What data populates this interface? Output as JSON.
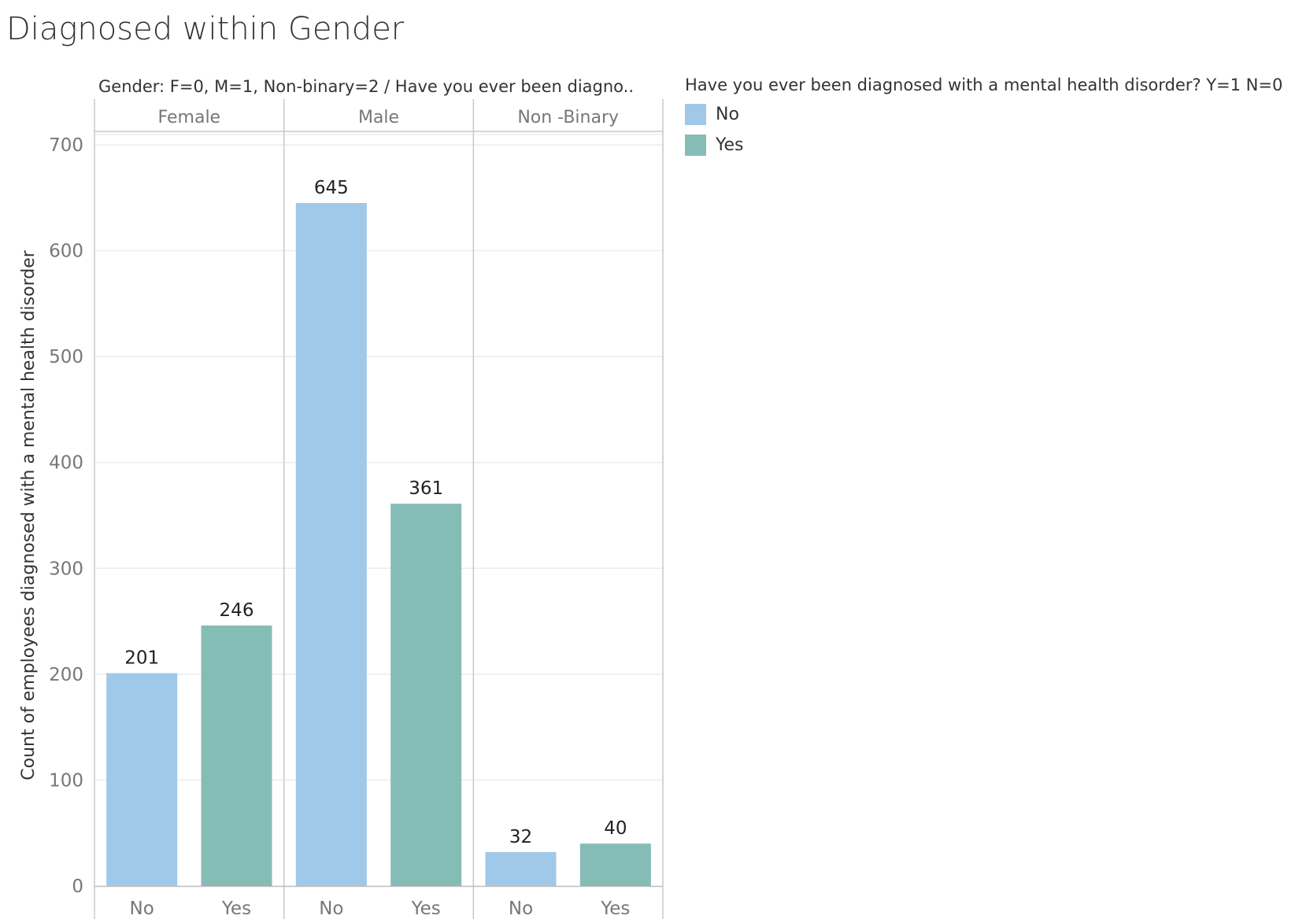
{
  "chart_data": {
    "type": "bar",
    "title": "Diagnosed within Gender",
    "column_header": "Gender: F=0, M=1, Non-binary=2  /  Have you ever been diagno..",
    "ylabel": "Count of employees diagnosed with a mental health disorder",
    "ylim": [
      0,
      700
    ],
    "yticks": [
      0,
      100,
      200,
      300,
      400,
      500,
      600,
      700
    ],
    "grid": true,
    "legend_position": "right",
    "legend_title": "Have you ever been diagnosed with a mental health disorder? Y=1 N=0",
    "legend_items": [
      {
        "label": "No",
        "color": "#A0C8E8"
      },
      {
        "label": "Yes",
        "color": "#86BCB6"
      }
    ],
    "groups": [
      {
        "name": "Female",
        "bars": [
          {
            "label": "No",
            "value": 201,
            "color": "#A0C8E8"
          },
          {
            "label": "Yes",
            "value": 246,
            "color": "#86BCB6"
          }
        ]
      },
      {
        "name": "Male",
        "bars": [
          {
            "label": "No",
            "value": 645,
            "color": "#A0C8E8"
          },
          {
            "label": "Yes",
            "value": 361,
            "color": "#86BCB6"
          }
        ]
      },
      {
        "name": "Non -Binary",
        "bars": [
          {
            "label": "No",
            "value": 32,
            "color": "#A0C8E8"
          },
          {
            "label": "Yes",
            "value": 40,
            "color": "#86BCB6"
          }
        ]
      }
    ]
  }
}
